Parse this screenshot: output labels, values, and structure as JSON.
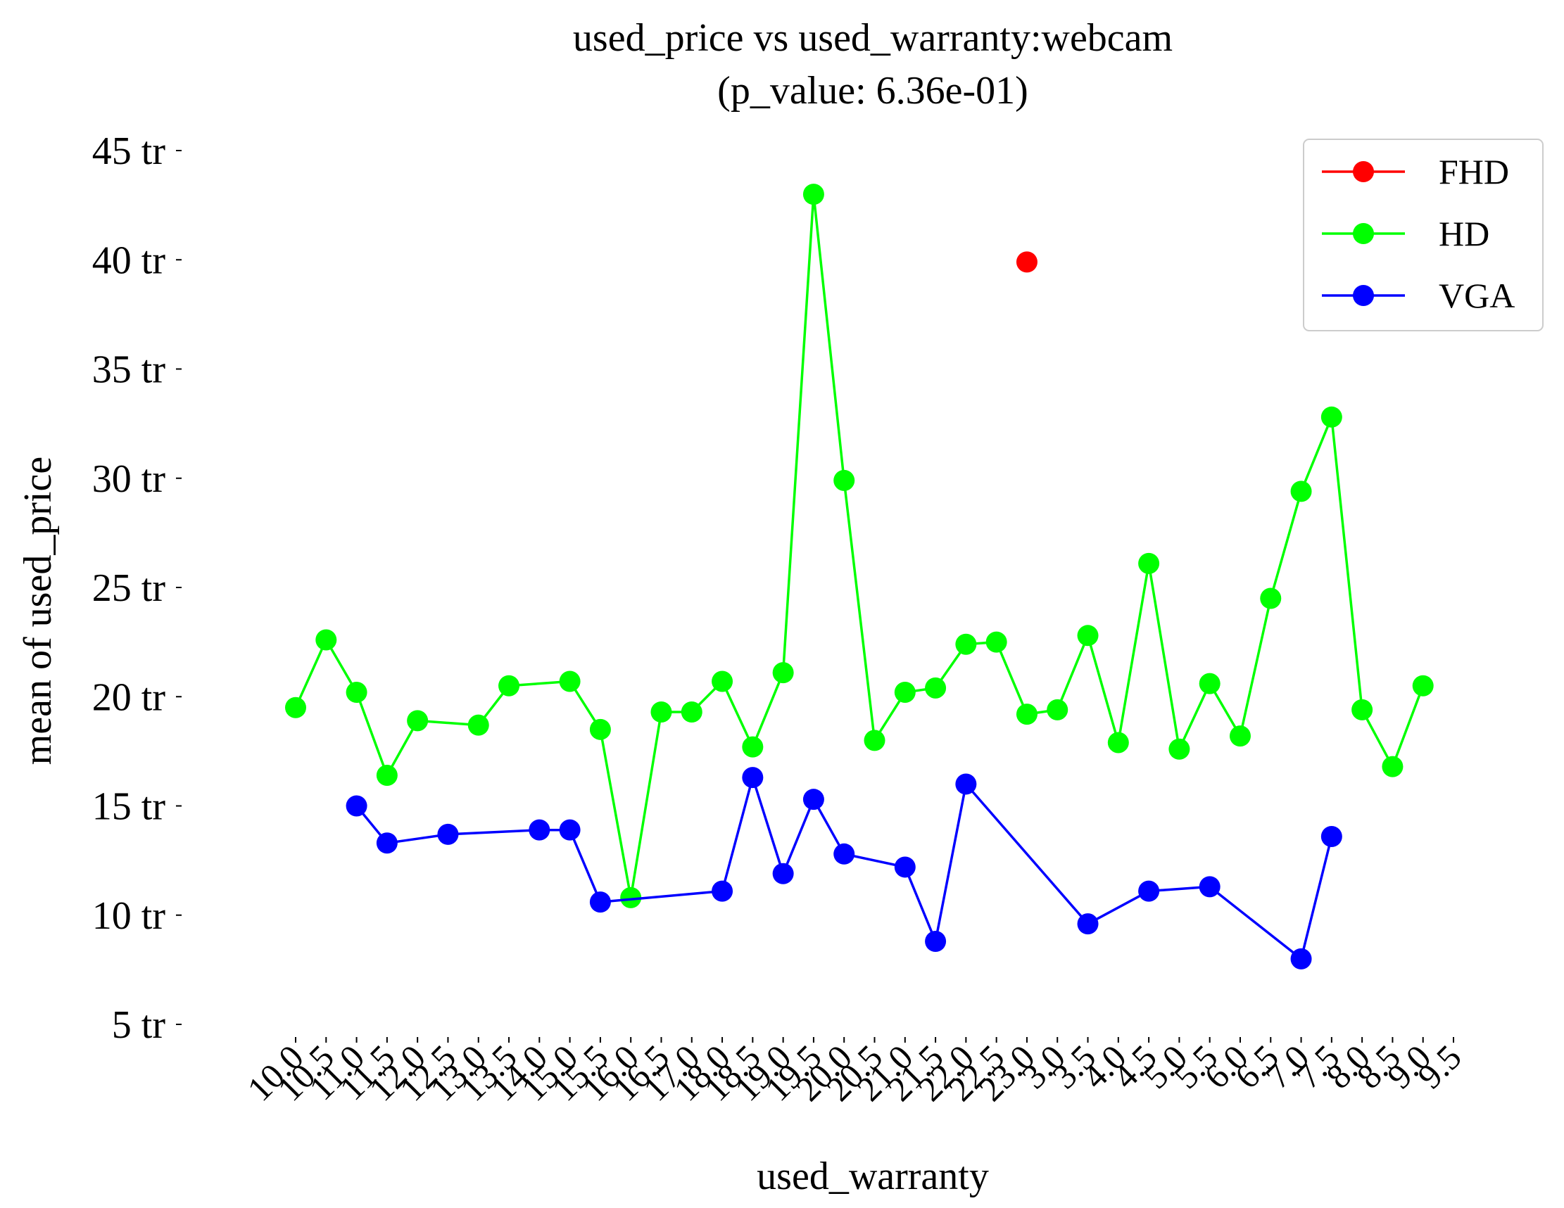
{
  "chart_data": {
    "type": "line",
    "title": "used_price vs used_warranty:webcam",
    "subtitle": "(p_value: 6.36e-01)",
    "xlabel": "used_warranty",
    "ylabel": "mean of used_price",
    "categories": [
      "10.0",
      "10.5",
      "11.0",
      "11.5",
      "12.0",
      "12.5",
      "13.0",
      "13.5",
      "14.0",
      "15.0",
      "15.5",
      "16.0",
      "16.5",
      "17.0",
      "18.0",
      "18.5",
      "19.0",
      "19.5",
      "20.0",
      "20.5",
      "21.0",
      "21.5",
      "22.0",
      "22.5",
      "23.0",
      "3.0",
      "3.5",
      "4.0",
      "4.5",
      "5.0",
      "5.5",
      "6.0",
      "6.5",
      "7.0",
      "7.5",
      "8.0",
      "8.5",
      "9.0",
      "9.5"
    ],
    "ylim": [
      5,
      45
    ],
    "yticks": [
      5,
      10,
      15,
      20,
      25,
      30,
      35,
      40,
      45
    ],
    "ytick_labels": [
      "5 tr",
      "10 tr",
      "15 tr",
      "20 tr",
      "25 tr",
      "30 tr",
      "35 tr",
      "40 tr",
      "45 tr"
    ],
    "y_unit": "tr",
    "grid": false,
    "legend_position": "top-right",
    "series": [
      {
        "name": "FHD",
        "color": "#ff0000",
        "values": [
          null,
          null,
          null,
          null,
          null,
          null,
          null,
          null,
          null,
          null,
          null,
          null,
          null,
          null,
          null,
          null,
          null,
          null,
          null,
          null,
          null,
          null,
          null,
          null,
          39.9,
          null,
          null,
          null,
          null,
          null,
          null,
          null,
          null,
          null,
          null,
          null,
          null,
          null,
          null
        ]
      },
      {
        "name": "HD",
        "color": "#00ff00",
        "values": [
          19.5,
          22.6,
          20.2,
          16.4,
          18.9,
          null,
          18.7,
          20.5,
          null,
          20.7,
          18.5,
          10.8,
          19.3,
          19.3,
          20.7,
          17.7,
          21.1,
          43.0,
          29.9,
          18.0,
          20.2,
          20.4,
          22.4,
          22.5,
          19.2,
          19.4,
          22.8,
          17.9,
          26.1,
          17.6,
          20.6,
          18.2,
          24.5,
          29.4,
          32.8,
          19.4,
          16.8,
          20.5,
          null
        ]
      },
      {
        "name": "VGA",
        "color": "#0000ff",
        "values": [
          null,
          null,
          15.0,
          13.3,
          null,
          13.7,
          null,
          null,
          13.9,
          13.9,
          10.6,
          null,
          null,
          null,
          11.1,
          16.3,
          11.9,
          15.3,
          12.8,
          null,
          12.2,
          8.8,
          16.0,
          null,
          null,
          null,
          9.6,
          null,
          11.1,
          null,
          11.3,
          null,
          null,
          8.0,
          13.6,
          null,
          null,
          null,
          null
        ]
      }
    ]
  }
}
